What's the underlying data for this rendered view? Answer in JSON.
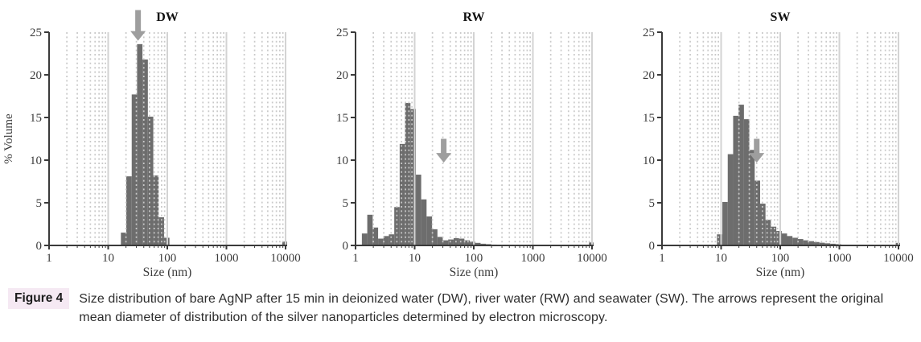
{
  "figure": {
    "caption_label": "Figure 4",
    "caption_text": "Size distribution of bare AgNP after 15 min in deionized water (DW), river water (RW) and seawater (SW). The arrows represent the original mean diameter of distribution of the silver nanoparticles determined by electron microscopy."
  },
  "style": {
    "bar_color": "#6d6d6d",
    "grid_minor_color": "#c9c9c9",
    "grid_major_color": "#d3d3d3",
    "axis_color": "#3a3a3a",
    "tick_label_color": "#3c3c3c",
    "title_color": "#111111",
    "arrow_color": "#9e9e9e",
    "badge_bg": "#f5e9f3",
    "caption_color": "#2e2e2e"
  },
  "chart_data": [
    {
      "type": "bar",
      "title": "DW",
      "xlabel": "Size (nm)",
      "ylabel": "% Volume",
      "xscale": "log",
      "xlim": [
        1,
        10000
      ],
      "ylim": [
        0,
        25
      ],
      "xtick_labels": [
        "1",
        "10",
        "100",
        "1000",
        "10000"
      ],
      "ytick_labels": [
        "0",
        "5",
        "10",
        "15",
        "20",
        "25"
      ],
      "grid": "log-minor-dotted",
      "legend": "none",
      "bin_edges_nm": [
        16.4,
        20.2,
        25.0,
        30.8,
        38.0,
        46.9,
        57.9,
        71.4,
        88.1,
        108.7
      ],
      "values": [
        1.5,
        8.1,
        17.7,
        23.6,
        21.8,
        15.1,
        8.2,
        3.3,
        0.9
      ],
      "outlier_bar": {
        "x0_nm": 8800,
        "x1_nm": 10600,
        "value": 0.45
      },
      "arrow": {
        "x_nm": 32,
        "y_tip": 24.0,
        "y_tail": 27.6
      }
    },
    {
      "type": "bar",
      "title": "RW",
      "xlabel": "Size (nm)",
      "ylabel": "",
      "xscale": "log",
      "xlim": [
        1,
        10000
      ],
      "ylim": [
        0,
        25
      ],
      "xtick_labels": [
        "1",
        "10",
        "100",
        "1000",
        "10000"
      ],
      "ytick_labels": [
        "0",
        "5",
        "10",
        "15",
        "20",
        "25"
      ],
      "grid": "log-minor-dotted",
      "legend": "none",
      "bin_edges_nm": [
        1.28,
        1.58,
        1.95,
        2.41,
        2.97,
        3.66,
        4.52,
        5.58,
        6.88,
        8.49,
        10.5,
        12.9,
        15.9,
        19.7,
        24.3,
        29.9,
        36.9,
        45.6,
        56.2,
        69.4,
        85.6,
        105.6,
        130.3,
        160.7,
        198.3,
        244.6,
        301.8
      ],
      "values": [
        1.4,
        3.6,
        2.1,
        0.8,
        1.1,
        1.3,
        4.5,
        11.9,
        16.7,
        16.0,
        8.3,
        5.4,
        3.4,
        1.9,
        1.0,
        0.6,
        0.7,
        0.85,
        0.8,
        0.6,
        0.45,
        0.3,
        0.2,
        0.15,
        0.1,
        0.07
      ],
      "outlier_bar": {
        "x0_nm": 8900,
        "x1_nm": 10600,
        "value": 0.35
      },
      "arrow": {
        "x_nm": 31,
        "y_tip": 9.7,
        "y_tail": 12.5
      }
    },
    {
      "type": "bar",
      "title": "SW",
      "xlabel": "Size (nm)",
      "ylabel": "",
      "xscale": "log",
      "xlim": [
        1,
        10000
      ],
      "ylim": [
        0,
        25
      ],
      "xtick_labels": [
        "1",
        "10",
        "100",
        "1000",
        "10000"
      ],
      "ytick_labels": [
        "0",
        "5",
        "10",
        "15",
        "20",
        "25"
      ],
      "grid": "log-minor-dotted",
      "legend": "none",
      "bin_edges_nm": [
        8.5,
        10.5,
        12.95,
        15.98,
        19.71,
        24.32,
        30.0,
        37.0,
        45.7,
        56.3,
        69.5,
        85.8,
        105.8,
        130.5,
        161.0,
        198.7,
        245.1,
        302.4,
        373.1,
        460.3,
        567.8,
        700.5,
        864.2,
        1066.0
      ],
      "values": [
        1.3,
        5.1,
        10.7,
        15.2,
        16.5,
        14.8,
        11.2,
        7.6,
        4.9,
        3.0,
        2.2,
        1.7,
        1.4,
        1.1,
        0.9,
        0.75,
        0.6,
        0.5,
        0.4,
        0.32,
        0.25,
        0.2,
        0.15
      ],
      "outlier_bar": {
        "x0_nm": 9000,
        "x1_nm": 10600,
        "value": 0.3
      },
      "arrow": {
        "x_nm": 40,
        "y_tip": 9.7,
        "y_tail": 12.5
      }
    }
  ]
}
